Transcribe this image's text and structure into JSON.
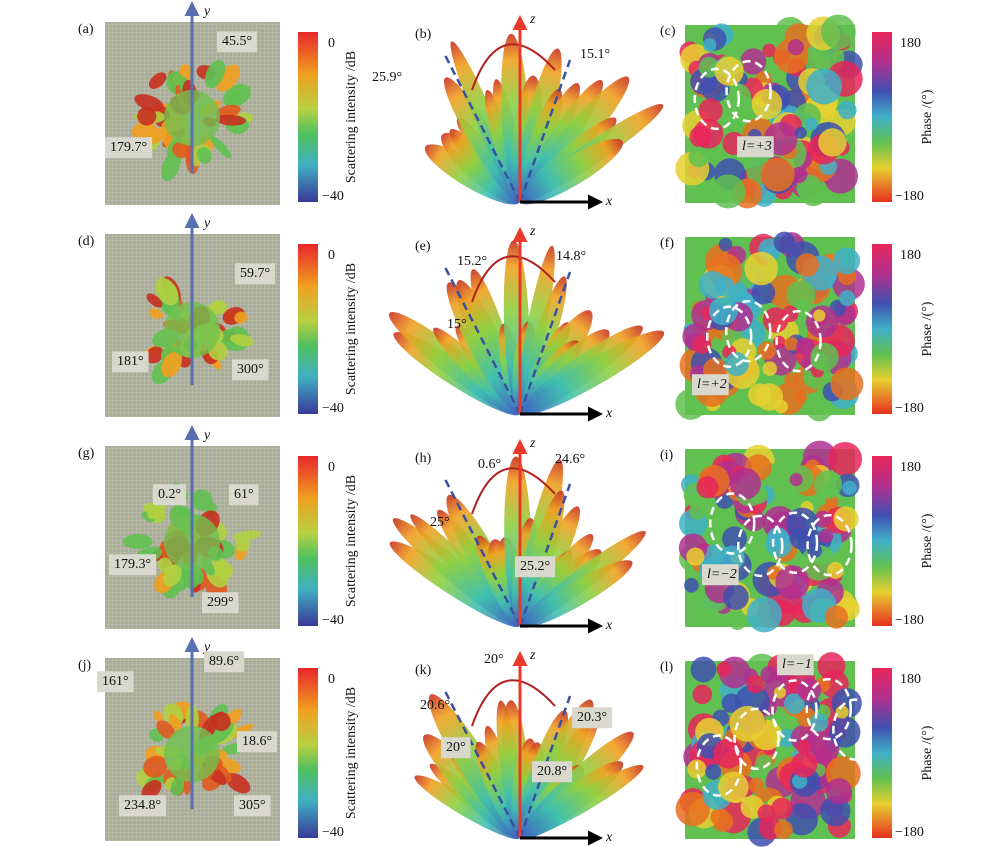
{
  "rows": [
    {
      "left": {
        "label": "(a)",
        "axis": "y",
        "annotations": [
          "45.5°",
          "179.7°"
        ]
      },
      "colorbar": {
        "title": "Scattering intensity /dB",
        "max": "0",
        "min": "−40"
      },
      "middle": {
        "label": "(b)",
        "axes": [
          "z",
          "x"
        ],
        "annotations": [
          "25.9°",
          "15.1°"
        ]
      },
      "right": {
        "label": "(c)",
        "mode": "l=+3"
      },
      "phasebar": {
        "title": "Phase /(°)",
        "max": "180",
        "min": "−180"
      }
    },
    {
      "left": {
        "label": "(d)",
        "axis": "y",
        "annotations": [
          "59.7°",
          "181°",
          "300°"
        ]
      },
      "colorbar": {
        "title": "Scattering intensity /dB",
        "max": "0",
        "min": "−40"
      },
      "middle": {
        "label": "(e)",
        "axes": [
          "z",
          "x"
        ],
        "annotations": [
          "15.2°",
          "14.8°",
          "15°"
        ]
      },
      "right": {
        "label": "(f)",
        "mode": "l=+2"
      },
      "phasebar": {
        "title": "Phase /(°)",
        "max": "180",
        "min": "−180"
      }
    },
    {
      "left": {
        "label": "(g)",
        "axis": "y",
        "annotations": [
          "0.2°",
          "61°",
          "179.3°",
          "299°"
        ]
      },
      "colorbar": {
        "title": "Scattering intensity /dB",
        "max": "0",
        "min": "−40"
      },
      "middle": {
        "label": "(h)",
        "axes": [
          "z",
          "x"
        ],
        "annotations": [
          "0.6°",
          "24.6°",
          "25°",
          "25.2°"
        ]
      },
      "right": {
        "label": "(i)",
        "mode": "l=−2"
      },
      "phasebar": {
        "title": "Phase /(°)",
        "max": "180",
        "min": "−180"
      }
    },
    {
      "left": {
        "label": "(j)",
        "axis": "y",
        "annotations": [
          "161°",
          "89.6°",
          "18.6°",
          "234.8°",
          "305°"
        ]
      },
      "colorbar": {
        "title": "Scattering intensity /dB",
        "max": "0",
        "min": "−40"
      },
      "middle": {
        "label": "(k)",
        "axes": [
          "z",
          "x"
        ],
        "annotations": [
          "20°",
          "20.6°",
          "20°",
          "20.3°",
          "20.8°"
        ]
      },
      "right": {
        "label": "(l)",
        "mode": "l=−1"
      },
      "phasebar": {
        "title": "Phase /(°)",
        "max": "180",
        "min": "−180"
      }
    }
  ]
}
